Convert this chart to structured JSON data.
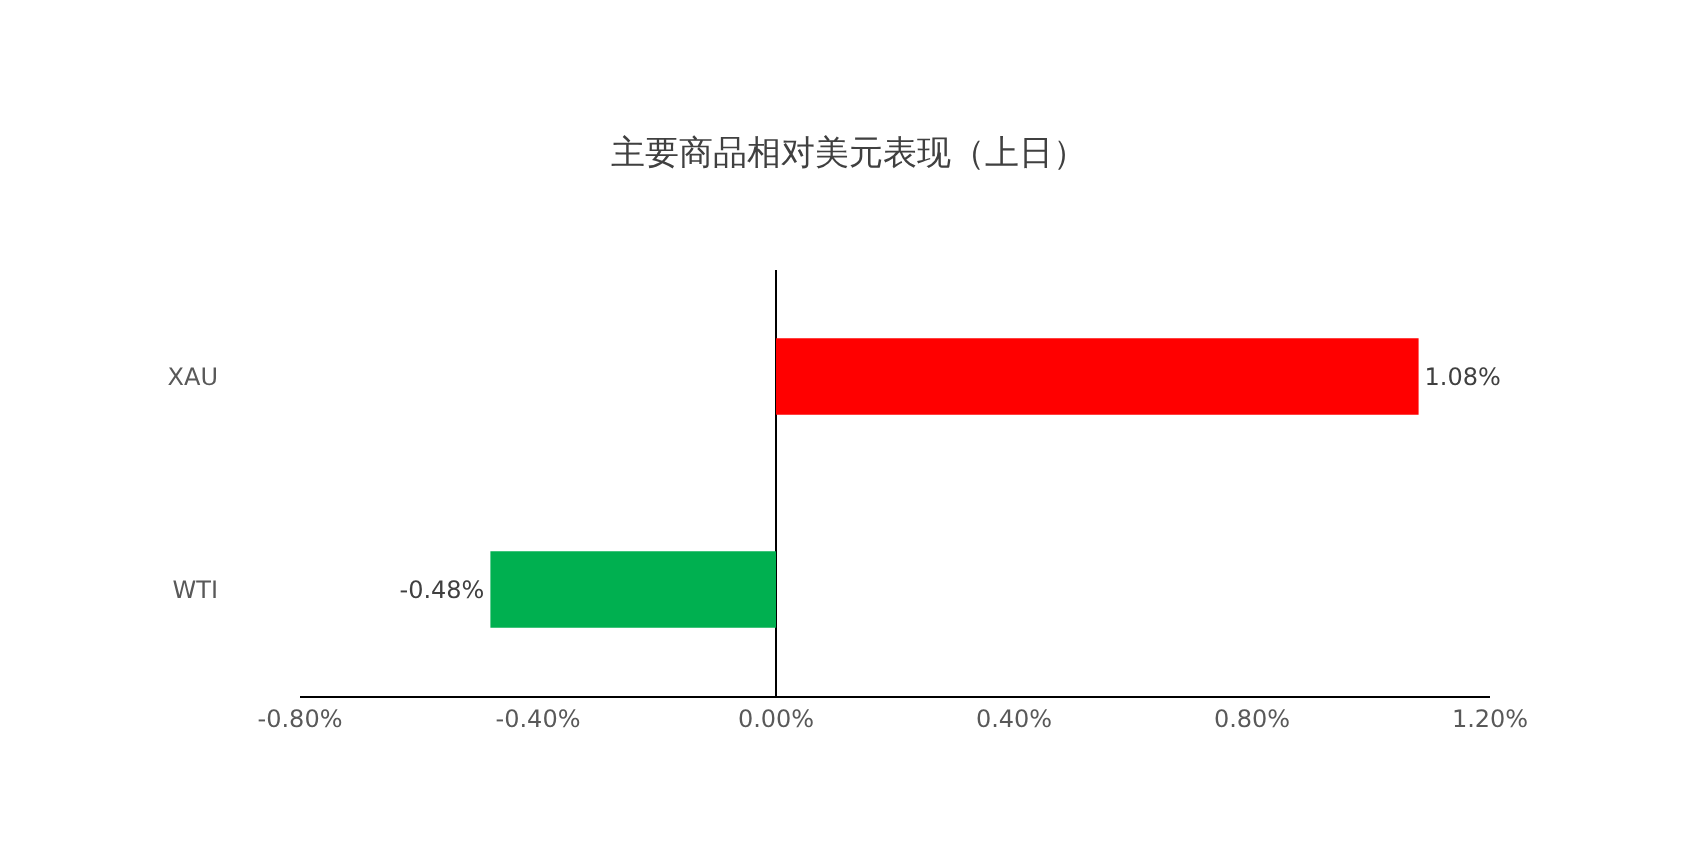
{
  "chart_data": {
    "type": "bar",
    "orientation": "horizontal",
    "title": "主要商品相对美元表现（上日）",
    "categories": [
      "XAU",
      "WTI"
    ],
    "values": [
      1.08,
      -0.48
    ],
    "colors": [
      "#ff0000",
      "#00b050"
    ],
    "value_labels": [
      "1.08%",
      "-0.48%"
    ],
    "xlim": [
      -0.8,
      1.2
    ],
    "xticks": [
      {
        "value": -0.8,
        "label": "-0.80%"
      },
      {
        "value": -0.4,
        "label": "-0.40%"
      },
      {
        "value": 0,
        "label": "0.00%"
      },
      {
        "value": 0.4,
        "label": "0.40%"
      },
      {
        "value": 0.8,
        "label": "0.80%"
      },
      {
        "value": 1.2,
        "label": "1.20%"
      }
    ],
    "data_labels": true
  }
}
